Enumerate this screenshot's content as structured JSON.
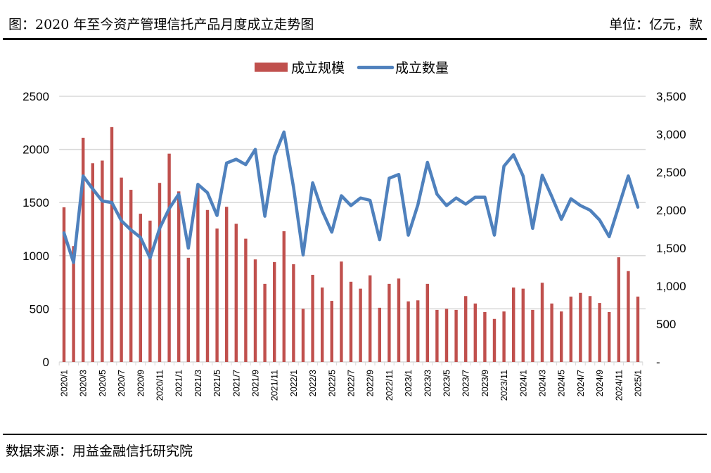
{
  "header": {
    "title": "图：2020 年至今资产管理信托产品月度成立走势图",
    "unit": "单位：亿元，款"
  },
  "footer": {
    "source": "数据来源：用益金融信托研究院"
  },
  "colors": {
    "bar": "#c0504d",
    "line": "#4f81bd",
    "grid": "#d9d9d9"
  },
  "chart_data": {
    "type": "bar+line",
    "title": "2020 年至今资产管理信托产品月度成立走势图",
    "legend": [
      "成立规模",
      "成立数量"
    ],
    "legend_position": "top-center",
    "grid": true,
    "categories": [
      "2020/1",
      "2020/2",
      "2020/3",
      "2020/4",
      "2020/5",
      "2020/6",
      "2020/7",
      "2020/8",
      "2020/9",
      "2020/10",
      "2020/11",
      "2020/12",
      "2021/1",
      "2021/2",
      "2021/3",
      "2021/4",
      "2021/5",
      "2021/6",
      "2021/7",
      "2021/8",
      "2021/9",
      "2021/10",
      "2021/11",
      "2021/12",
      "2022/1",
      "2022/2",
      "2022/3",
      "2022/4",
      "2022/5",
      "2022/6",
      "2022/7",
      "2022/8",
      "2022/9",
      "2022/10",
      "2022/11",
      "2022/12",
      "2023/1",
      "2023/2",
      "2023/3",
      "2023/4",
      "2023/5",
      "2023/6",
      "2023/7",
      "2023/8",
      "2023/9",
      "2023/10",
      "2023/11",
      "2023/12",
      "2024/1",
      "2024/2",
      "2024/3",
      "2024/4",
      "2024/5",
      "2024/6",
      "2024/7",
      "2024/8",
      "2024/9",
      "2024/10",
      "2024/11",
      "2024/12",
      "2025/1"
    ],
    "series": [
      {
        "name": "成立规模",
        "type": "bar",
        "axis": "left",
        "values": [
          1455,
          1090,
          2110,
          1870,
          1895,
          2210,
          1735,
          1620,
          1395,
          1330,
          1685,
          1960,
          1605,
          980,
          1640,
          1430,
          1255,
          1460,
          1300,
          1160,
          965,
          735,
          940,
          1230,
          920,
          500,
          820,
          700,
          575,
          945,
          755,
          690,
          815,
          510,
          735,
          785,
          570,
          580,
          735,
          490,
          500,
          490,
          620,
          550,
          470,
          405,
          475,
          700,
          690,
          490,
          745,
          550,
          475,
          615,
          650,
          620,
          555,
          470,
          985,
          855,
          615
        ]
      },
      {
        "name": "成立数量",
        "type": "line",
        "axis": "right",
        "values": [
          1700,
          1310,
          2450,
          2280,
          2120,
          2100,
          1860,
          1740,
          1640,
          1370,
          1760,
          2020,
          2210,
          1500,
          2340,
          2230,
          1930,
          2620,
          2670,
          2600,
          2800,
          1920,
          2710,
          3030,
          2300,
          1410,
          2360,
          1990,
          1710,
          2190,
          2060,
          2160,
          2130,
          1610,
          2420,
          2470,
          1670,
          2070,
          2630,
          2210,
          2060,
          2160,
          2080,
          2170,
          2170,
          1670,
          2580,
          2730,
          2450,
          1760,
          2460,
          2180,
          1880,
          2150,
          2060,
          2000,
          1870,
          1650,
          2050,
          2450,
          2040
        ]
      }
    ],
    "left_axis": {
      "ylim": [
        0,
        2500
      ],
      "ticks": [
        "0",
        "500",
        "1000",
        "1500",
        "2000",
        "2500"
      ]
    },
    "right_axis": {
      "ylim": [
        0,
        3500
      ],
      "ticks": [
        "-",
        "500",
        "1,000",
        "1,500",
        "2,000",
        "2,500",
        "3,000",
        "3,500"
      ]
    },
    "x_tick_labels": [
      "2020/1",
      "2020/3",
      "2020/5",
      "2020/7",
      "2020/9",
      "2020/11",
      "2021/1",
      "2021/3",
      "2021/5",
      "2021/7",
      "2021/9",
      "2021/11",
      "2022/1",
      "2022/3",
      "2022/5",
      "2022/7",
      "2022/9",
      "2022/11",
      "2023/1",
      "2023/3",
      "2023/5",
      "2023/7",
      "2023/9",
      "2023/11",
      "2024/1",
      "2024/3",
      "2024/5",
      "2024/7",
      "2024/9",
      "2024/11",
      "2025/1"
    ]
  }
}
